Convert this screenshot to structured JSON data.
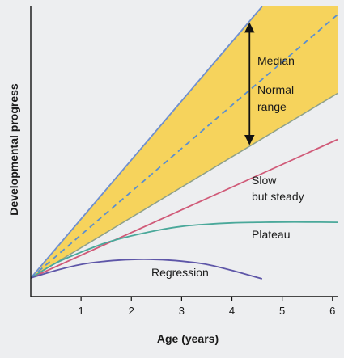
{
  "chart_data": {
    "type": "line",
    "title": "",
    "xlabel": "Age (years)",
    "ylabel": "Developmental progress",
    "xlim": [
      0,
      6.1
    ],
    "ylim": [
      0,
      10
    ],
    "x_ticks": [
      "1",
      "2",
      "3",
      "4",
      "5",
      "6"
    ],
    "y_ticks": [],
    "band": {
      "label_line1": "Normal",
      "label_line2": "range",
      "upper": [
        [
          0,
          0
        ],
        [
          4.6,
          10
        ]
      ],
      "lower": [
        [
          0,
          0
        ],
        [
          6.1,
          6.8
        ]
      ],
      "fill": "#f6d35c",
      "edge": "#6e8fd0"
    },
    "series": [
      {
        "name": "Median",
        "style": "dashed",
        "color": "#5b8fcf",
        "points": [
          [
            0,
            0
          ],
          [
            6.1,
            9.7
          ]
        ]
      },
      {
        "name": "Slow but steady",
        "label_line1": "Slow",
        "label_line2": "but steady",
        "color": "#d05a78",
        "points": [
          [
            0,
            0
          ],
          [
            6.1,
            5.1
          ]
        ]
      },
      {
        "name": "Plateau",
        "color": "#4aa89a",
        "points": [
          [
            0,
            0
          ],
          [
            0.5,
            0.55
          ],
          [
            1,
            0.95
          ],
          [
            1.5,
            1.3
          ],
          [
            2,
            1.55
          ],
          [
            2.5,
            1.75
          ],
          [
            3,
            1.9
          ],
          [
            3.5,
            1.98
          ],
          [
            4,
            2.03
          ],
          [
            4.5,
            2.05
          ],
          [
            5,
            2.06
          ],
          [
            5.5,
            2.06
          ],
          [
            6.1,
            2.05
          ]
        ]
      },
      {
        "name": "Regression",
        "color": "#5e56a8",
        "points": [
          [
            0,
            0
          ],
          [
            0.5,
            0.28
          ],
          [
            1,
            0.5
          ],
          [
            1.5,
            0.62
          ],
          [
            2,
            0.68
          ],
          [
            2.5,
            0.68
          ],
          [
            3,
            0.62
          ],
          [
            3.5,
            0.5
          ],
          [
            4,
            0.28
          ],
          [
            4.6,
            -0.03
          ]
        ]
      }
    ],
    "arrow_x": 4.35,
    "grid": false,
    "legend": "none"
  }
}
